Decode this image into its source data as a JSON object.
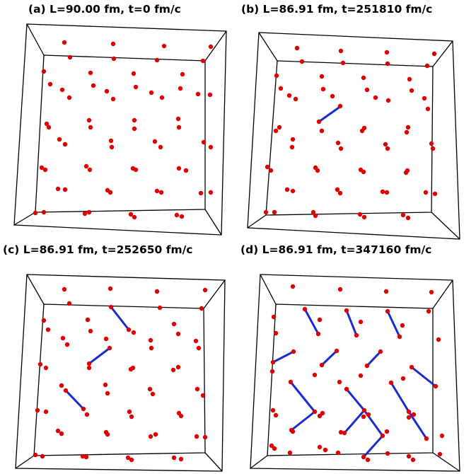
{
  "panels": [
    {
      "id": "a",
      "title": "(a) L=90.00 fm, t=0 fm/c"
    },
    {
      "id": "b",
      "title": "(b) L=86.91 fm, t=251810 fm/c"
    },
    {
      "id": "c",
      "title": "(c) L=86.91 fm, t=252650 fm/c"
    },
    {
      "id": "d",
      "title": "(d) L=86.91 fm, t=347160 fm/c"
    }
  ],
  "colors": {
    "particle": "#e00000",
    "bond": "#1a2ad0",
    "box": "#000000"
  }
}
